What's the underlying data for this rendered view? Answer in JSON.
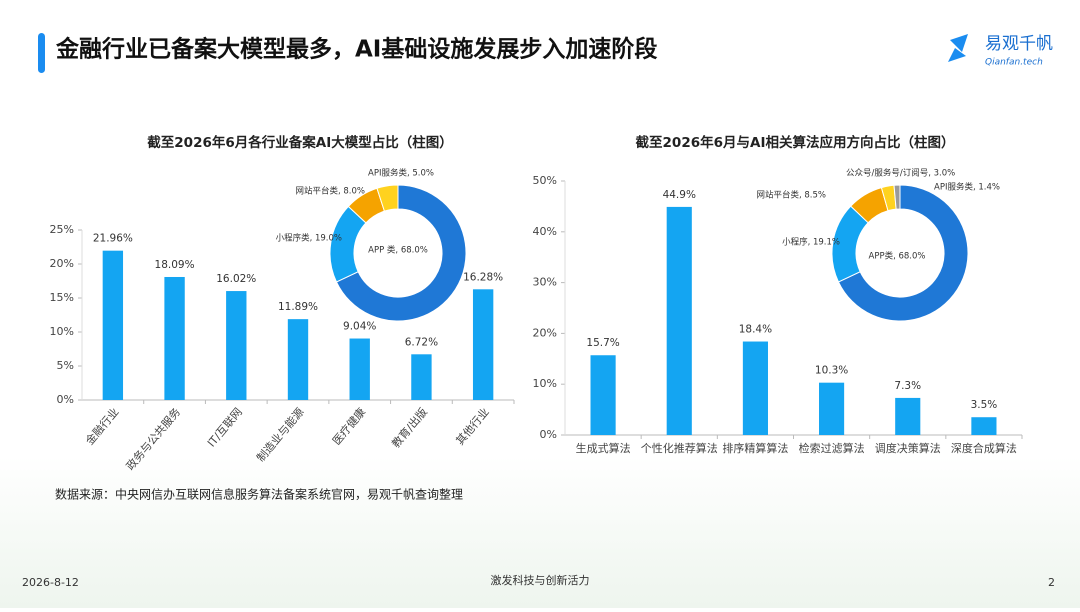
{
  "header": {
    "title": "金融行业已备案大模型最多，AI基础设施发展步入加速阶段",
    "logo": "易观千帆",
    "logo_sub": "Qianfan.tech"
  },
  "chart_data": [
    {
      "type": "bar",
      "title": "截至2026年6月各行业备案AI大模型占比（柱图）",
      "categories": [
        "金融行业",
        "政务与公共服务",
        "IT/互联网",
        "制造业与能源",
        "医疗健康",
        "教育/出版",
        "其他行业"
      ],
      "values": [
        21.96,
        18.09,
        16.02,
        11.89,
        9.04,
        6.72,
        16.28
      ],
      "value_labels": [
        "21.96%",
        "18.09%",
        "16.02%",
        "11.89%",
        "9.04%",
        "6.72%",
        "16.28%"
      ],
      "color": "#14a5f2",
      "ylim": [
        0,
        25
      ],
      "yticks": [
        {
          "value": 0,
          "label": "0%"
        },
        {
          "value": 5,
          "label": "5%"
        },
        {
          "value": 10,
          "label": "10%"
        },
        {
          "value": 15,
          "label": "15%"
        },
        {
          "value": 20,
          "label": "20%"
        },
        {
          "value": 25,
          "label": "25%"
        }
      ]
    },
    {
      "type": "pie",
      "donut": true,
      "categories": [
        "APP 类",
        "小程序类",
        "网站平台类",
        "API服务类"
      ],
      "values": [
        68.0,
        19.0,
        8.0,
        5.0
      ],
      "value_labels": [
        "APP 类, 68.0%",
        "小程序类, 19.0%",
        "网站平台类, 8.0%",
        "API服务类, 5.0%"
      ],
      "colors": [
        "#1f78d6",
        "#14a5f2",
        "#f5a300",
        "#ffd21f"
      ]
    },
    {
      "type": "bar",
      "title": "截至2026年6月与AI相关算法应用方向占比（柱图）",
      "categories": [
        "生成式算法",
        "个性化推荐算法",
        "排序精算算法",
        "检索过滤算法",
        "调度决策算法",
        "深度合成算法"
      ],
      "values": [
        15.7,
        44.9,
        18.4,
        10.3,
        7.3,
        3.5
      ],
      "value_labels": [
        "15.7%",
        "44.9%",
        "18.4%",
        "10.3%",
        "7.3%",
        "3.5%"
      ],
      "color": "#14a5f2",
      "ylim": [
        0,
        50
      ],
      "yticks": [
        {
          "value": 0,
          "label": "0%"
        },
        {
          "value": 10,
          "label": "10%"
        },
        {
          "value": 20,
          "label": "20%"
        },
        {
          "value": 30,
          "label": "30%"
        },
        {
          "value": 40,
          "label": "40%"
        },
        {
          "value": 50,
          "label": "50%"
        }
      ]
    },
    {
      "type": "pie",
      "donut": true,
      "categories": [
        "APP类",
        "小程序",
        "网站平台类",
        "公众号/服务号/订阅号",
        "API服务类"
      ],
      "values": [
        68.0,
        19.1,
        8.5,
        3.0,
        1.4
      ],
      "value_labels": [
        "APP类, 68.0%",
        "小程序, 19.1%",
        "网站平台类, 8.5%",
        "公众号/服务号/订阅号, 3.0%",
        "API服务类, 1.4%"
      ],
      "colors": [
        "#1f78d6",
        "#14a5f2",
        "#f5a300",
        "#ffd21f",
        "#9a9a9a"
      ]
    }
  ],
  "source": "数据来源：中央网信办互联网信息服务算法备案系统官网，易观千帆查询整理",
  "footer": {
    "date": "2026-8-12",
    "slogan": "激发科技与创新活力",
    "page": "2"
  }
}
